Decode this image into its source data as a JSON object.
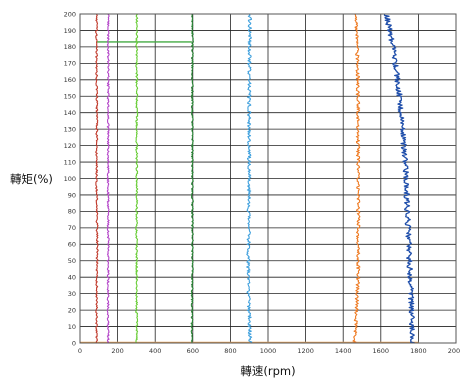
{
  "chart_data": {
    "type": "line",
    "title": "",
    "xlabel": "轉速(rpm)",
    "ylabel": "轉矩(%)",
    "xlim": [
      0,
      2000
    ],
    "ylim": [
      0,
      200
    ],
    "x_ticks": [
      "0",
      "200",
      "400",
      "600",
      "800",
      "1000",
      "1200",
      "1400",
      "1600",
      "1800",
      "2000"
    ],
    "y_ticks": [
      "0",
      "10",
      "20",
      "30",
      "40",
      "50",
      "60",
      "70",
      "80",
      "90",
      "100",
      "110",
      "120",
      "130",
      "140",
      "150",
      "160",
      "170",
      "180",
      "190",
      "200"
    ],
    "grid": true,
    "legend": "none",
    "series": [
      {
        "color": "#c0392b",
        "x": [
          88,
          88,
          92,
          88,
          90,
          88,
          88
        ],
        "y": [
          0,
          20,
          60,
          100,
          140,
          180,
          200
        ]
      },
      {
        "color": "#b344c8",
        "x": [
          150,
          150,
          150,
          150,
          150
        ],
        "y": [
          0,
          50,
          100,
          150,
          200
        ]
      },
      {
        "color": "#66cc33",
        "x": [
          302,
          302,
          302,
          302,
          302
        ],
        "y": [
          0,
          50,
          100,
          150,
          200
        ]
      },
      {
        "color": "#2e8b3a",
        "x": [
          595,
          598,
          598,
          598,
          598
        ],
        "y": [
          0,
          50,
          100,
          150,
          200
        ]
      },
      {
        "color": "#3fa0dd",
        "x": [
          905,
          895,
          900,
          900,
          905
        ],
        "y": [
          0,
          40,
          100,
          160,
          200
        ]
      },
      {
        "color": "#ee7a22",
        "x": [
          1460,
          1480,
          1480,
          1478,
          1470
        ],
        "y": [
          0,
          40,
          100,
          160,
          200
        ]
      },
      {
        "color": "#1f4eaa",
        "x": [
          1770,
          1760,
          1745,
          1730,
          1700,
          1665,
          1630
        ],
        "y": [
          0,
          30,
          70,
          110,
          150,
          180,
          200
        ]
      }
    ],
    "baseline": {
      "color": "#e8a35a",
      "x": [
        0,
        1800
      ],
      "y": [
        0,
        0
      ]
    },
    "marker_segment": {
      "color": "#44aa44",
      "x": [
        88,
        595
      ],
      "y": [
        183,
        183
      ]
    }
  }
}
